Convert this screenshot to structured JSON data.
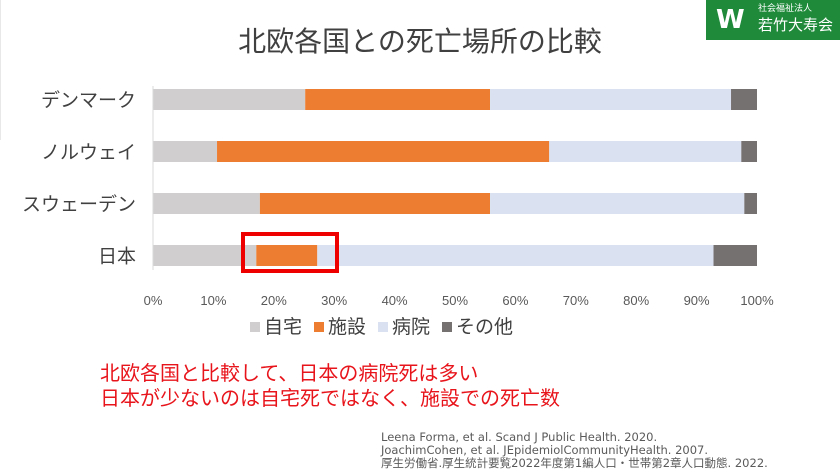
{
  "logo": {
    "mark": "W",
    "subtitle": "社会福祉法人",
    "name": "若竹大寿会",
    "color": "#1e8a3a"
  },
  "message": {
    "line1": "北欧各国と比較して、日本の病院死は多い",
    "line2": "日本が少ないのは自宅死ではなく、施設での死亡数",
    "color": "#e8141b"
  },
  "references": [
    "Leena Forma, et al. Scand J Public Health. 2020.",
    "JoachimCohen, et al. JEpidemiolCommunityHealth. 2007.",
    "厚生労働省.厚生統計要覧2022年度第1編人口・世帯第2章人口動態. 2022."
  ],
  "chart_data": {
    "type": "bar",
    "orientation": "horizontal",
    "stacked": "percent",
    "title": "北欧各国との死亡場所の比較",
    "categories": [
      "デンマーク",
      "ノルウェイ",
      "スウェーデン",
      "日本"
    ],
    "series": [
      {
        "name": "自宅",
        "color": "#d0cece",
        "values": [
          25.2,
          10.6,
          17.7,
          17.1
        ]
      },
      {
        "name": "施設",
        "color": "#ed7d31",
        "values": [
          30.6,
          55.0,
          38.1,
          10.1
        ]
      },
      {
        "name": "病院",
        "color": "#dae1f0",
        "values": [
          39.9,
          31.8,
          42.1,
          65.6
        ]
      },
      {
        "name": "その他",
        "color": "#767171",
        "values": [
          4.3,
          2.6,
          2.1,
          7.2
        ]
      }
    ],
    "xlim": [
      0,
      100
    ],
    "xticks": [
      "0%",
      "10%",
      "20%",
      "30%",
      "40%",
      "50%",
      "60%",
      "70%",
      "80%",
      "90%",
      "100%"
    ],
    "legend_position": "bottom",
    "grid": false,
    "highlight": {
      "category": "日本",
      "series": "施設",
      "color": "#ee0000"
    }
  }
}
